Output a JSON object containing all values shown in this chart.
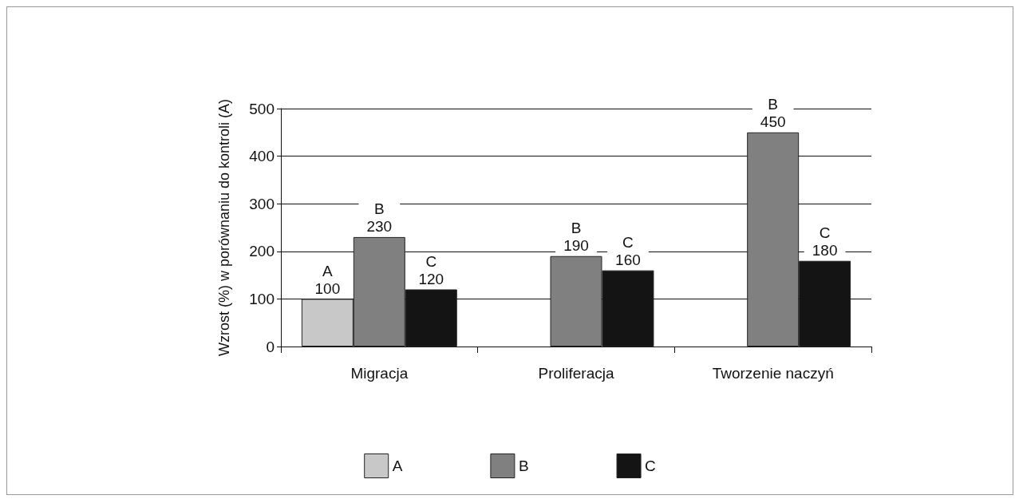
{
  "chart_data": {
    "type": "bar",
    "ylabel": "Wzrost (%) w porównaniu do kontroli (A)",
    "categories": [
      "Migracja",
      "Proliferacja",
      "Tworzenie naczyń"
    ],
    "series": [
      {
        "name": "A",
        "color": "#c8c8c8",
        "values": [
          100,
          null,
          null
        ]
      },
      {
        "name": "B",
        "color": "#808080",
        "values": [
          230,
          190,
          450
        ]
      },
      {
        "name": "C",
        "color": "#141414",
        "values": [
          120,
          160,
          180
        ]
      }
    ],
    "ylim": [
      0,
      500
    ],
    "yticks": [
      0,
      100,
      200,
      300,
      400,
      500
    ],
    "grid": "y",
    "legend": "bottom",
    "data_labels": true
  }
}
